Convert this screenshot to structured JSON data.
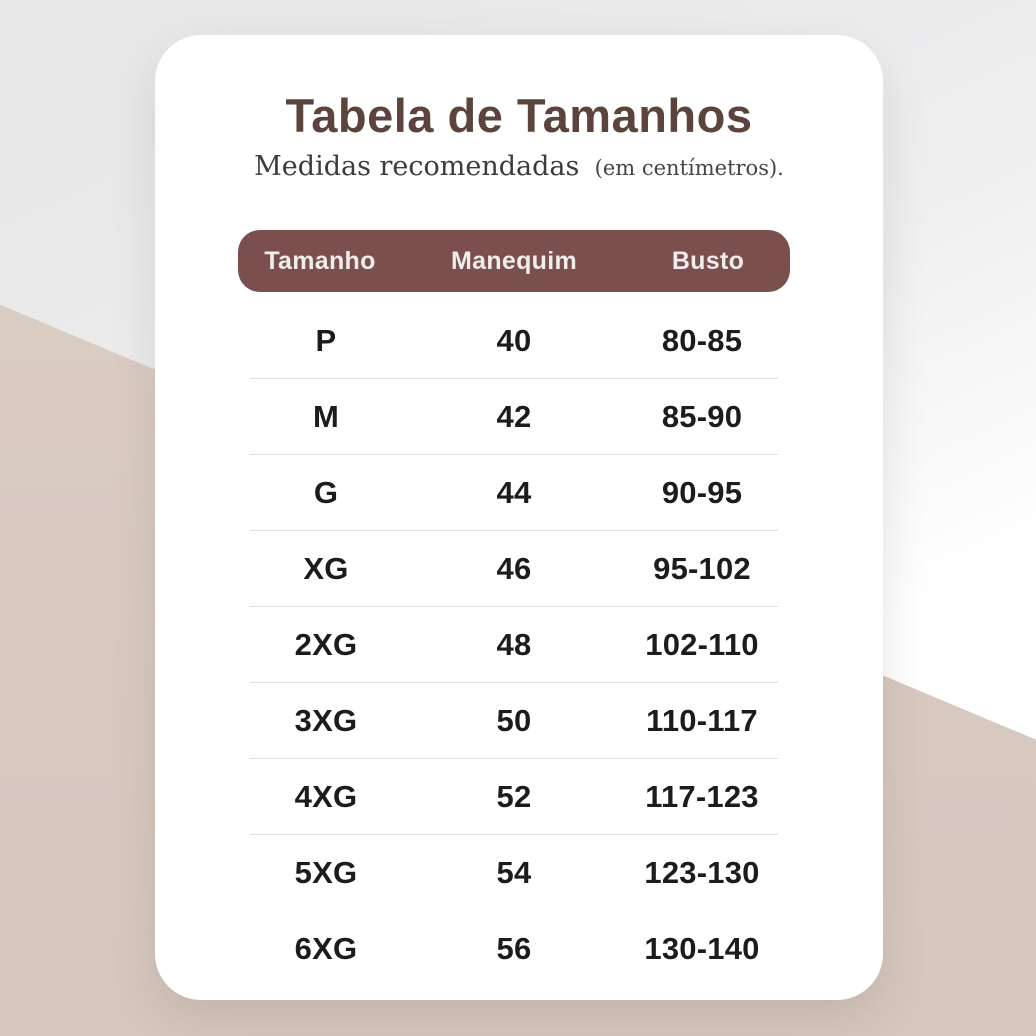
{
  "page": {
    "title": "Tabela de Tamanhos",
    "subtitle": "Medidas recomendadas",
    "subtitle_note": "(em centímetros)."
  },
  "table": {
    "columns": [
      "Tamanho",
      "Manequim",
      "Busto"
    ],
    "rows": [
      {
        "size": "P",
        "mannequin": "40",
        "bust": "80-85"
      },
      {
        "size": "M",
        "mannequin": "42",
        "bust": "85-90"
      },
      {
        "size": "G",
        "mannequin": "44",
        "bust": "90-95"
      },
      {
        "size": "XG",
        "mannequin": "46",
        "bust": "95-102"
      },
      {
        "size": "2XG",
        "mannequin": "48",
        "bust": "102-110"
      },
      {
        "size": "3XG",
        "mannequin": "50",
        "bust": "110-117"
      },
      {
        "size": "4XG",
        "mannequin": "52",
        "bust": "117-123"
      },
      {
        "size": "5XG",
        "mannequin": "54",
        "bust": "123-130"
      },
      {
        "size": "6XG",
        "mannequin": "56",
        "bust": "130-140"
      }
    ]
  },
  "chart_data": {
    "type": "table",
    "title": "Tabela de Tamanhos",
    "subtitle": "Medidas recomendadas (em centímetros).",
    "columns": [
      "Tamanho",
      "Manequim",
      "Busto"
    ],
    "rows": [
      [
        "P",
        "40",
        "80-85"
      ],
      [
        "M",
        "42",
        "85-90"
      ],
      [
        "G",
        "44",
        "90-95"
      ],
      [
        "XG",
        "46",
        "95-102"
      ],
      [
        "2XG",
        "48",
        "102-110"
      ],
      [
        "3XG",
        "50",
        "110-117"
      ],
      [
        "4XG",
        "52",
        "117-123"
      ],
      [
        "5XG",
        "54",
        "123-130"
      ],
      [
        "6XG",
        "56",
        "130-140"
      ]
    ]
  },
  "colors": {
    "header_bg": "#7a4f4e",
    "header_text": "#f2eded",
    "title_text": "#5a443c",
    "row_text": "#1c1c1c",
    "divider": "#e6dfdb",
    "card_bg": "#ffffff",
    "bg_gray": "#e8e8e9",
    "bg_beige": "#d9cbc3"
  }
}
